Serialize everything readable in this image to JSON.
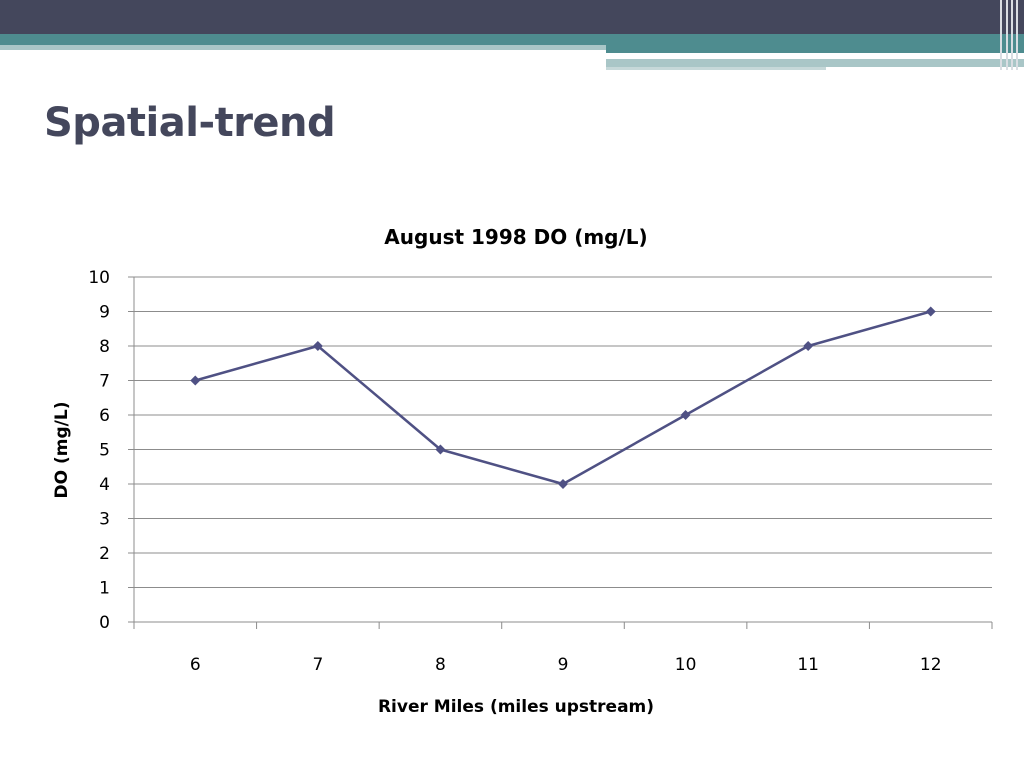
{
  "slide": {
    "title": "Spatial-trend"
  },
  "theme": {
    "header_dark": "#44475c",
    "header_teal": "#4e8c8f",
    "header_light": "#a9c6c7",
    "series_color": "#4f5184",
    "grid_color": "#8c8c8c"
  },
  "chart_data": {
    "type": "line",
    "title": "August 1998 DO (mg/L)",
    "xlabel": "River Miles (miles upstream)",
    "ylabel": "DO (mg/L)",
    "categories": [
      "6",
      "7",
      "8",
      "9",
      "10",
      "11",
      "12"
    ],
    "values": [
      7,
      8,
      5,
      4,
      6,
      8,
      9
    ],
    "ylim": [
      0,
      10
    ],
    "yticks": [
      0,
      1,
      2,
      3,
      4,
      5,
      6,
      7,
      8,
      9,
      10
    ],
    "grid": true,
    "legend": "none",
    "marker": "diamond"
  }
}
